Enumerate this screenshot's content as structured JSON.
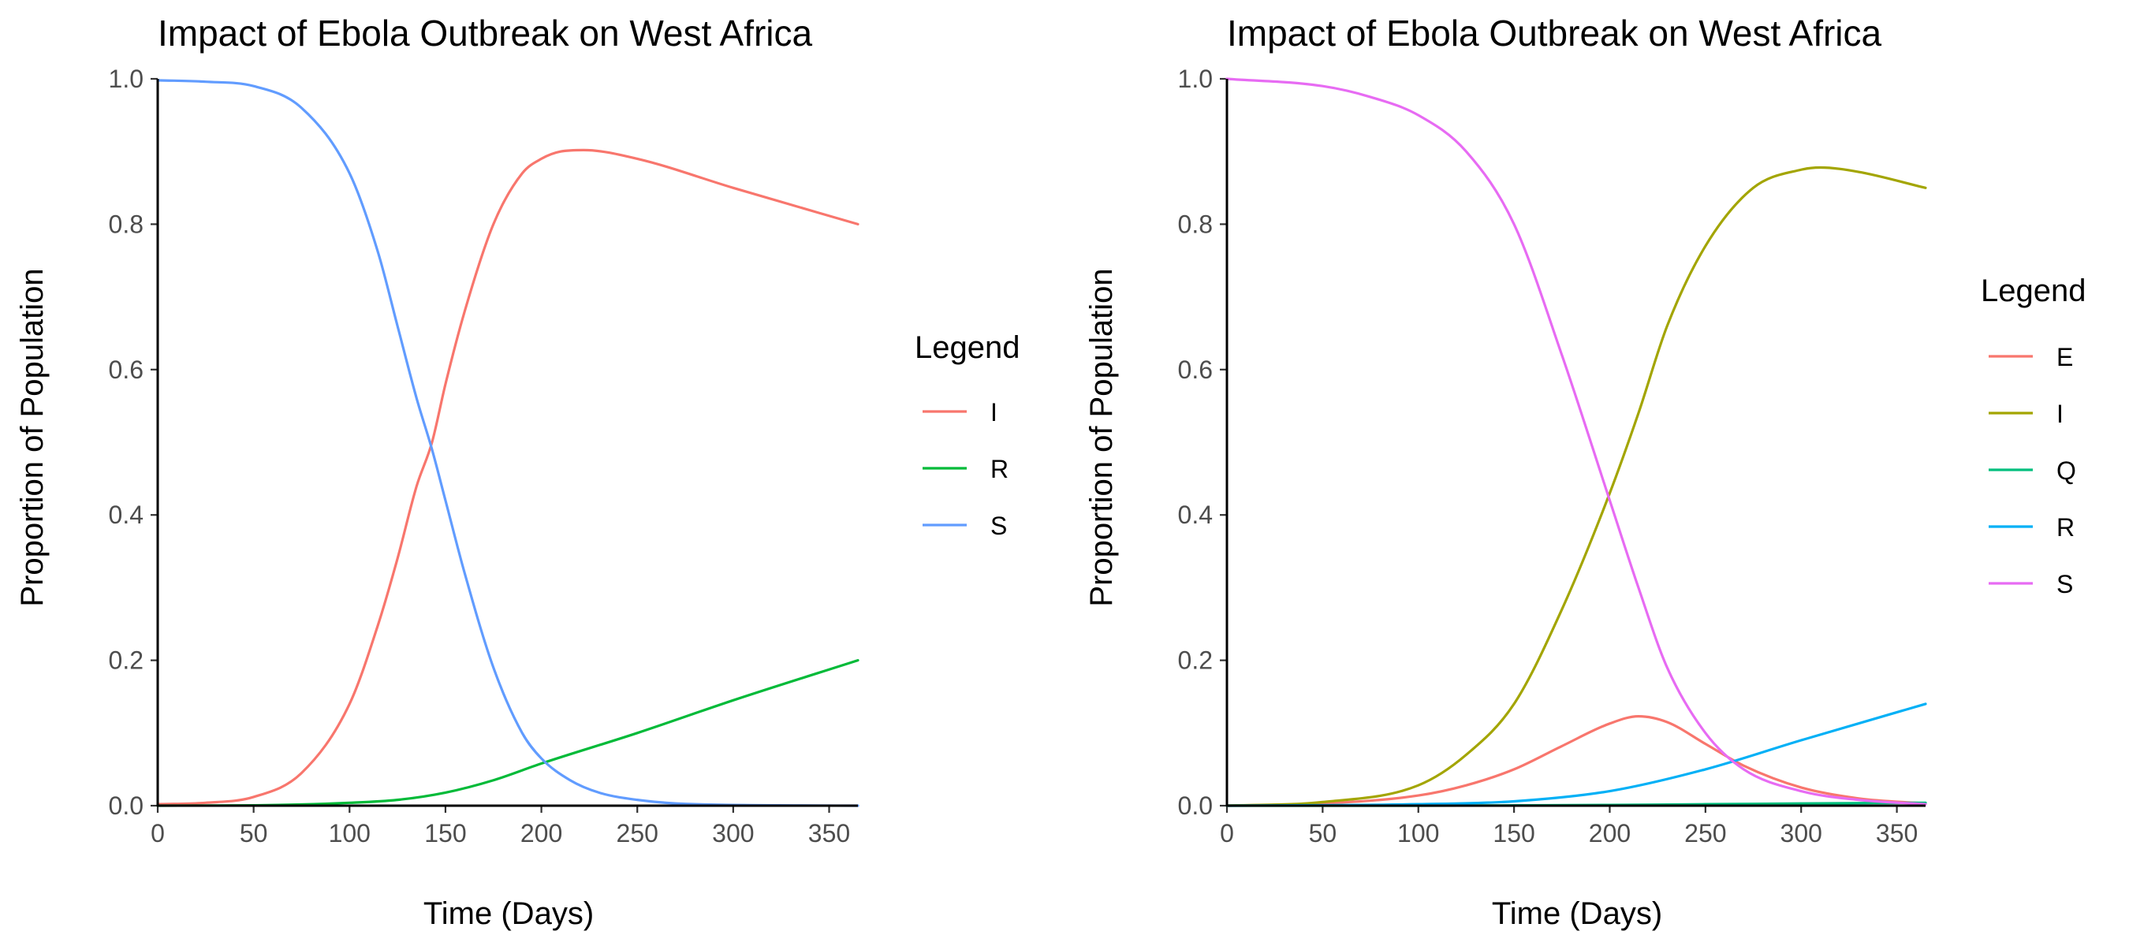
{
  "chart_data": [
    {
      "type": "line",
      "title": "Impact of Ebola Outbreak on West Africa",
      "xlabel": "Time (Days)",
      "ylabel": "Proportion of Population",
      "xlim": [
        0,
        365
      ],
      "ylim": [
        0,
        1
      ],
      "x_ticks": [
        0,
        50,
        100,
        150,
        200,
        250,
        300,
        350
      ],
      "y_ticks": [
        "0.0",
        "0.2",
        "0.4",
        "0.6",
        "0.8",
        "1.0"
      ],
      "grid": false,
      "legend": {
        "title": "Legend",
        "placement": "right"
      },
      "series": [
        {
          "name": "I",
          "color": "#F8766D",
          "x": [
            0,
            25,
            50,
            75,
            100,
            115,
            125,
            135,
            143,
            150,
            160,
            175,
            190,
            200,
            210,
            222,
            250,
            300,
            365
          ],
          "y": [
            0.002,
            0.004,
            0.012,
            0.045,
            0.14,
            0.25,
            0.34,
            0.44,
            0.5,
            0.58,
            0.68,
            0.8,
            0.87,
            0.89,
            0.9,
            0.902,
            0.89,
            0.85,
            0.8
          ]
        },
        {
          "name": "R",
          "color": "#00BA38",
          "x": [
            0,
            50,
            100,
            125,
            150,
            175,
            200,
            250,
            300,
            365
          ],
          "y": [
            0.0,
            0.0005,
            0.004,
            0.008,
            0.018,
            0.035,
            0.058,
            0.1,
            0.145,
            0.2
          ]
        },
        {
          "name": "S",
          "color": "#619CFF",
          "x": [
            0,
            25,
            50,
            75,
            100,
            115,
            125,
            135,
            143,
            150,
            160,
            175,
            190,
            200,
            215,
            230,
            250,
            280,
            365
          ],
          "y": [
            0.998,
            0.996,
            0.99,
            0.96,
            0.87,
            0.76,
            0.66,
            0.56,
            0.49,
            0.42,
            0.32,
            0.19,
            0.1,
            0.065,
            0.035,
            0.018,
            0.008,
            0.002,
            0.0
          ]
        }
      ]
    },
    {
      "type": "line",
      "title": "Impact of Ebola Outbreak on West Africa",
      "xlabel": "Time (Days)",
      "ylabel": "Proportion of Population",
      "xlim": [
        0,
        365
      ],
      "ylim": [
        0,
        1
      ],
      "x_ticks": [
        0,
        50,
        100,
        150,
        200,
        250,
        300,
        350
      ],
      "y_ticks": [
        "0.0",
        "0.2",
        "0.4",
        "0.6",
        "0.8",
        "1.0"
      ],
      "grid": false,
      "legend": {
        "title": "Legend",
        "placement": "right"
      },
      "series": [
        {
          "name": "E",
          "color": "#F8766D",
          "x": [
            0,
            50,
            100,
            125,
            150,
            175,
            200,
            215,
            230,
            250,
            270,
            300,
            330,
            365
          ],
          "y": [
            0.0,
            0.003,
            0.014,
            0.028,
            0.05,
            0.082,
            0.113,
            0.123,
            0.115,
            0.085,
            0.055,
            0.025,
            0.01,
            0.003
          ]
        },
        {
          "name": "I",
          "color": "#A3A500",
          "x": [
            0,
            50,
            100,
            125,
            150,
            175,
            200,
            215,
            230,
            250,
            275,
            300,
            310,
            330,
            365
          ],
          "y": [
            0.0,
            0.005,
            0.028,
            0.07,
            0.14,
            0.27,
            0.43,
            0.54,
            0.66,
            0.77,
            0.85,
            0.875,
            0.878,
            0.872,
            0.85
          ]
        },
        {
          "name": "Q",
          "color": "#00BF7D",
          "x": [
            0,
            100,
            200,
            250,
            300,
            365
          ],
          "y": [
            0.0,
            0.0,
            0.001,
            0.002,
            0.003,
            0.004
          ]
        },
        {
          "name": "R",
          "color": "#00B0F6",
          "x": [
            0,
            100,
            150,
            200,
            250,
            300,
            365
          ],
          "y": [
            0.0,
            0.002,
            0.006,
            0.02,
            0.05,
            0.09,
            0.14
          ]
        },
        {
          "name": "S",
          "color": "#E76BF3",
          "x": [
            0,
            50,
            75,
            100,
            125,
            150,
            175,
            200,
            215,
            230,
            250,
            270,
            300,
            330,
            365
          ],
          "y": [
            1.0,
            0.99,
            0.975,
            0.95,
            0.9,
            0.8,
            0.62,
            0.42,
            0.3,
            0.19,
            0.1,
            0.05,
            0.02,
            0.008,
            0.002
          ]
        }
      ]
    }
  ]
}
